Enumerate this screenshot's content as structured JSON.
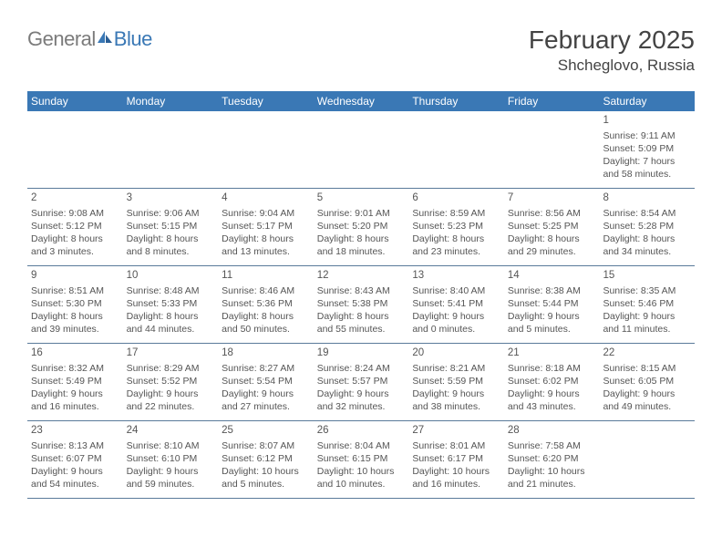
{
  "logo": {
    "general": "General",
    "blue": "Blue"
  },
  "title": "February 2025",
  "location": "Shcheglovo, Russia",
  "colors": {
    "header_bg": "#3a78b5",
    "header_fg": "#ffffff",
    "text": "#555555",
    "title_text": "#444444",
    "logo_gray": "#7b7b7b",
    "logo_blue": "#3a78b5",
    "divider": "#5a7a9a",
    "page_bg": "#ffffff"
  },
  "weekdays": [
    "Sunday",
    "Monday",
    "Tuesday",
    "Wednesday",
    "Thursday",
    "Friday",
    "Saturday"
  ],
  "weeks": [
    [
      null,
      null,
      null,
      null,
      null,
      null,
      {
        "n": "1",
        "sr": "Sunrise: 9:11 AM",
        "ss": "Sunset: 5:09 PM",
        "dl1": "Daylight: 7 hours",
        "dl2": "and 58 minutes."
      }
    ],
    [
      {
        "n": "2",
        "sr": "Sunrise: 9:08 AM",
        "ss": "Sunset: 5:12 PM",
        "dl1": "Daylight: 8 hours",
        "dl2": "and 3 minutes."
      },
      {
        "n": "3",
        "sr": "Sunrise: 9:06 AM",
        "ss": "Sunset: 5:15 PM",
        "dl1": "Daylight: 8 hours",
        "dl2": "and 8 minutes."
      },
      {
        "n": "4",
        "sr": "Sunrise: 9:04 AM",
        "ss": "Sunset: 5:17 PM",
        "dl1": "Daylight: 8 hours",
        "dl2": "and 13 minutes."
      },
      {
        "n": "5",
        "sr": "Sunrise: 9:01 AM",
        "ss": "Sunset: 5:20 PM",
        "dl1": "Daylight: 8 hours",
        "dl2": "and 18 minutes."
      },
      {
        "n": "6",
        "sr": "Sunrise: 8:59 AM",
        "ss": "Sunset: 5:23 PM",
        "dl1": "Daylight: 8 hours",
        "dl2": "and 23 minutes."
      },
      {
        "n": "7",
        "sr": "Sunrise: 8:56 AM",
        "ss": "Sunset: 5:25 PM",
        "dl1": "Daylight: 8 hours",
        "dl2": "and 29 minutes."
      },
      {
        "n": "8",
        "sr": "Sunrise: 8:54 AM",
        "ss": "Sunset: 5:28 PM",
        "dl1": "Daylight: 8 hours",
        "dl2": "and 34 minutes."
      }
    ],
    [
      {
        "n": "9",
        "sr": "Sunrise: 8:51 AM",
        "ss": "Sunset: 5:30 PM",
        "dl1": "Daylight: 8 hours",
        "dl2": "and 39 minutes."
      },
      {
        "n": "10",
        "sr": "Sunrise: 8:48 AM",
        "ss": "Sunset: 5:33 PM",
        "dl1": "Daylight: 8 hours",
        "dl2": "and 44 minutes."
      },
      {
        "n": "11",
        "sr": "Sunrise: 8:46 AM",
        "ss": "Sunset: 5:36 PM",
        "dl1": "Daylight: 8 hours",
        "dl2": "and 50 minutes."
      },
      {
        "n": "12",
        "sr": "Sunrise: 8:43 AM",
        "ss": "Sunset: 5:38 PM",
        "dl1": "Daylight: 8 hours",
        "dl2": "and 55 minutes."
      },
      {
        "n": "13",
        "sr": "Sunrise: 8:40 AM",
        "ss": "Sunset: 5:41 PM",
        "dl1": "Daylight: 9 hours",
        "dl2": "and 0 minutes."
      },
      {
        "n": "14",
        "sr": "Sunrise: 8:38 AM",
        "ss": "Sunset: 5:44 PM",
        "dl1": "Daylight: 9 hours",
        "dl2": "and 5 minutes."
      },
      {
        "n": "15",
        "sr": "Sunrise: 8:35 AM",
        "ss": "Sunset: 5:46 PM",
        "dl1": "Daylight: 9 hours",
        "dl2": "and 11 minutes."
      }
    ],
    [
      {
        "n": "16",
        "sr": "Sunrise: 8:32 AM",
        "ss": "Sunset: 5:49 PM",
        "dl1": "Daylight: 9 hours",
        "dl2": "and 16 minutes."
      },
      {
        "n": "17",
        "sr": "Sunrise: 8:29 AM",
        "ss": "Sunset: 5:52 PM",
        "dl1": "Daylight: 9 hours",
        "dl2": "and 22 minutes."
      },
      {
        "n": "18",
        "sr": "Sunrise: 8:27 AM",
        "ss": "Sunset: 5:54 PM",
        "dl1": "Daylight: 9 hours",
        "dl2": "and 27 minutes."
      },
      {
        "n": "19",
        "sr": "Sunrise: 8:24 AM",
        "ss": "Sunset: 5:57 PM",
        "dl1": "Daylight: 9 hours",
        "dl2": "and 32 minutes."
      },
      {
        "n": "20",
        "sr": "Sunrise: 8:21 AM",
        "ss": "Sunset: 5:59 PM",
        "dl1": "Daylight: 9 hours",
        "dl2": "and 38 minutes."
      },
      {
        "n": "21",
        "sr": "Sunrise: 8:18 AM",
        "ss": "Sunset: 6:02 PM",
        "dl1": "Daylight: 9 hours",
        "dl2": "and 43 minutes."
      },
      {
        "n": "22",
        "sr": "Sunrise: 8:15 AM",
        "ss": "Sunset: 6:05 PM",
        "dl1": "Daylight: 9 hours",
        "dl2": "and 49 minutes."
      }
    ],
    [
      {
        "n": "23",
        "sr": "Sunrise: 8:13 AM",
        "ss": "Sunset: 6:07 PM",
        "dl1": "Daylight: 9 hours",
        "dl2": "and 54 minutes."
      },
      {
        "n": "24",
        "sr": "Sunrise: 8:10 AM",
        "ss": "Sunset: 6:10 PM",
        "dl1": "Daylight: 9 hours",
        "dl2": "and 59 minutes."
      },
      {
        "n": "25",
        "sr": "Sunrise: 8:07 AM",
        "ss": "Sunset: 6:12 PM",
        "dl1": "Daylight: 10 hours",
        "dl2": "and 5 minutes."
      },
      {
        "n": "26",
        "sr": "Sunrise: 8:04 AM",
        "ss": "Sunset: 6:15 PM",
        "dl1": "Daylight: 10 hours",
        "dl2": "and 10 minutes."
      },
      {
        "n": "27",
        "sr": "Sunrise: 8:01 AM",
        "ss": "Sunset: 6:17 PM",
        "dl1": "Daylight: 10 hours",
        "dl2": "and 16 minutes."
      },
      {
        "n": "28",
        "sr": "Sunrise: 7:58 AM",
        "ss": "Sunset: 6:20 PM",
        "dl1": "Daylight: 10 hours",
        "dl2": "and 21 minutes."
      },
      null
    ]
  ]
}
